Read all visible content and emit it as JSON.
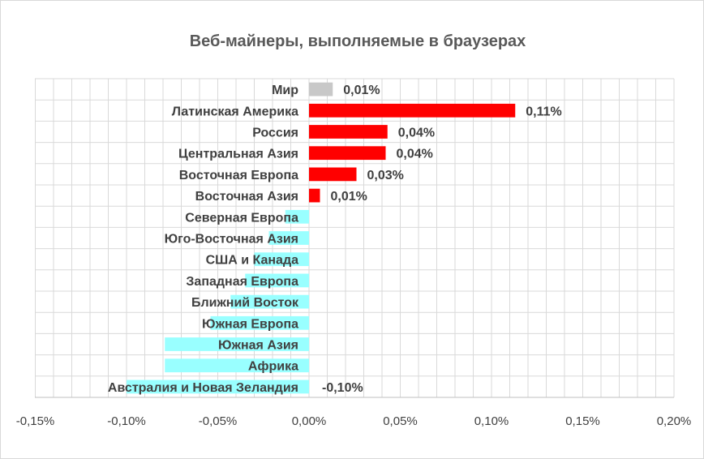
{
  "chart_data": {
    "type": "bar",
    "orientation": "horizontal",
    "title": "Веб-майнеры, выполняемые в браузерах",
    "xlim": [
      -0.0015,
      0.002
    ],
    "xticks": [
      -0.0015,
      -0.001,
      -0.0005,
      0,
      0.0005,
      0.001,
      0.0015,
      0.002
    ],
    "xtick_labels": [
      "-0,15%",
      "-0,10%",
      "-0,05%",
      "0,00%",
      "0,05%",
      "0,10%",
      "0,15%",
      "0,20%"
    ],
    "grid": true,
    "legend": "none",
    "categories": [
      "Мир",
      "Латинская Америка",
      "Россия",
      "Центральная Азия",
      "Восточная Европа",
      "Восточная Азия",
      "Северная Европа",
      "Юго-Восточная Азия",
      "США и Канада",
      "Западная Европа",
      "Ближний Восток",
      "Южная Европа",
      "Южная Азия",
      "Африка",
      "Австралия и Новая Зеландия"
    ],
    "values": [
      0.00013,
      0.00113,
      0.00043,
      0.00042,
      0.00026,
      6e-05,
      -0.00013,
      -0.00022,
      -0.0003,
      -0.00035,
      -0.00043,
      -0.00054,
      -0.00079,
      -0.00079,
      -0.001
    ],
    "data_labels": [
      "0,01%",
      "0,11%",
      "0,04%",
      "0,04%",
      "0,03%",
      "0,01%",
      "",
      "",
      "",
      "",
      "",
      "",
      "",
      "",
      "-0,10%"
    ],
    "colors": [
      "#c8c8c8",
      "#ff0000",
      "#ff0000",
      "#ff0000",
      "#ff0000",
      "#ff0000",
      "#99ffff",
      "#99ffff",
      "#99ffff",
      "#99ffff",
      "#99ffff",
      "#99ffff",
      "#99ffff",
      "#99ffff",
      "#99ffff"
    ]
  },
  "colors": {
    "grid": "#d9d9d9",
    "axis": "#bfbfbf"
  }
}
